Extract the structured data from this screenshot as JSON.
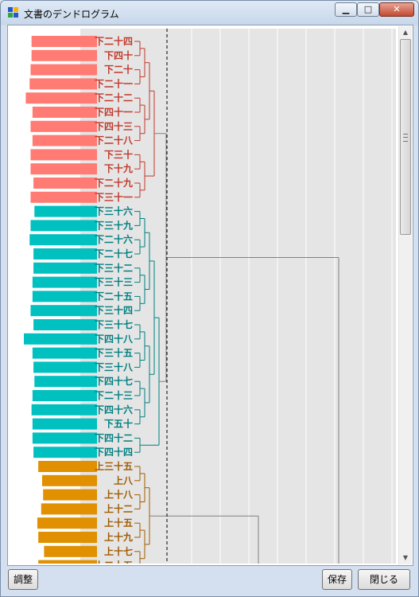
{
  "window": {
    "title": "文書のデンドログラム",
    "controls": {
      "minimize": "▁",
      "maximize": "□",
      "close": "✕"
    }
  },
  "buttons": {
    "adjust": "調整",
    "save": "保存",
    "close": "閉じる"
  },
  "scrollbar": {
    "up": "▲",
    "down": "▼"
  },
  "chart_data": {
    "type": "dendrogram",
    "cut_line": "dashed",
    "grid": true,
    "clusters": [
      {
        "color": "#ff7b73",
        "label_color": "#c0392b",
        "leaves": [
          "下二十四",
          "下四十",
          "下二十",
          "下二十一",
          "下二十二",
          "下四十一",
          "下四十三",
          "下二十八",
          "下三十",
          "下十九",
          "下二十九",
          "下三十一"
        ],
        "values": [
          68,
          68,
          69,
          70,
          74,
          67,
          69,
          67,
          69,
          69,
          66,
          69
        ]
      },
      {
        "color": "#00c0c0",
        "label_color": "#007f80",
        "leaves": [
          "下三十六",
          "下三十九",
          "下二十六",
          "下二十七",
          "下三十二",
          "下三十三",
          "下二十五",
          "下三十四",
          "下三十七",
          "下四十八",
          "下三十五",
          "下三十八",
          "下四十七",
          "下二十三",
          "下四十六",
          "下五十",
          "下四十二",
          "下四十四"
        ],
        "values": [
          65,
          69,
          70,
          66,
          66,
          67,
          67,
          69,
          66,
          76,
          67,
          66,
          65,
          67,
          68,
          67,
          67,
          66
        ]
      },
      {
        "color": "#e09000",
        "label_color": "#a05a00",
        "leaves": [
          "上三十五",
          "上八",
          "上十八",
          "上十二",
          "上十五",
          "上十九",
          "上十七",
          "上二十五"
        ],
        "values": [
          61,
          57,
          56,
          58,
          62,
          61,
          55,
          61
        ]
      }
    ]
  }
}
